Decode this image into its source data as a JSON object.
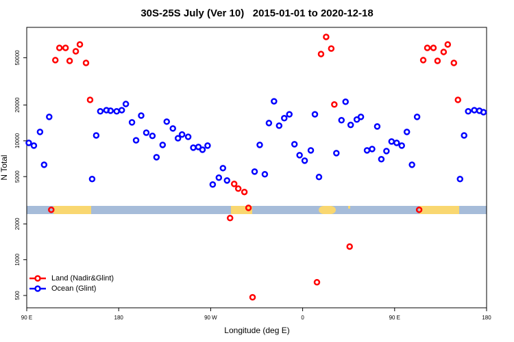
{
  "chart_data": {
    "type": "scatter",
    "title": "30S-25S July (Ver 10)   2015-01-01 to 2020-12-18",
    "x_label": "Longitude (deg E)",
    "y_label": "N Total",
    "xlim": [
      90,
      540
    ],
    "xticks": [
      {
        "value": 90,
        "label": "90 E"
      },
      {
        "value": 180,
        "label": "180"
      },
      {
        "value": 270,
        "label": "90 W"
      },
      {
        "value": 360,
        "label": "0"
      },
      {
        "value": 450,
        "label": "90 E"
      },
      {
        "value": 540,
        "label": "180"
      }
    ],
    "ylim": [
      394,
      90000
    ],
    "yticks": [
      500,
      1000,
      2000,
      5000,
      10000,
      20000,
      50000
    ],
    "log_y": true,
    "legend": "bottom left",
    "series": [
      {
        "name": "Land (Nadir&Glint)",
        "color": "#ff0000",
        "x": [
          114,
          118,
          122,
          128,
          132,
          138,
          142,
          148,
          152,
          289,
          293,
          297,
          303,
          307,
          311,
          374,
          378,
          383,
          388,
          391,
          406,
          474,
          478,
          482,
          488,
          492,
          498,
          502,
          508,
          512
        ],
        "values": [
          2630,
          47700,
          60500,
          60500,
          47000,
          56600,
          64600,
          45200,
          22100,
          2240,
          4340,
          3960,
          3710,
          2730,
          483,
          646,
          53700,
          74800,
          59700,
          20200,
          1290,
          2630,
          47700,
          60500,
          60500,
          47000,
          55900,
          64600,
          45200,
          22100
        ]
      },
      {
        "name": "Ocean (Glint)",
        "color": "#0000ff",
        "x": [
          92,
          97,
          103,
          107,
          112,
          154,
          158,
          162,
          168,
          172,
          178,
          183,
          187,
          193,
          197,
          202,
          207,
          213,
          217,
          223,
          227,
          233,
          238,
          242,
          248,
          253,
          258,
          262,
          267,
          272,
          278,
          282,
          286,
          313,
          318,
          323,
          327,
          332,
          337,
          342,
          347,
          352,
          357,
          362,
          368,
          372,
          376,
          393,
          398,
          402,
          407,
          413,
          417,
          423,
          428,
          433,
          437,
          442,
          447,
          452,
          457,
          462,
          467,
          472,
          514,
          518,
          522,
          528,
          533,
          537
        ],
        "values": [
          9610,
          9110,
          11880,
          6290,
          15900,
          4770,
          11100,
          17700,
          18100,
          17900,
          17700,
          18100,
          20400,
          14300,
          10100,
          16300,
          11700,
          11000,
          7280,
          9240,
          14500,
          12700,
          10500,
          11300,
          10800,
          8760,
          8880,
          8420,
          9110,
          4290,
          4900,
          5890,
          4640,
          5510,
          9240,
          5230,
          14100,
          21500,
          13400,
          15500,
          16700,
          9360,
          7570,
          6810,
          8310,
          16700,
          4960,
          7880,
          14900,
          21300,
          13600,
          15100,
          15900,
          8310,
          8530,
          13200,
          7000,
          8200,
          9870,
          9610,
          9110,
          11880,
          6290,
          15900,
          4770,
          11100,
          17700,
          18100,
          17900,
          17400
        ]
      }
    ]
  }
}
